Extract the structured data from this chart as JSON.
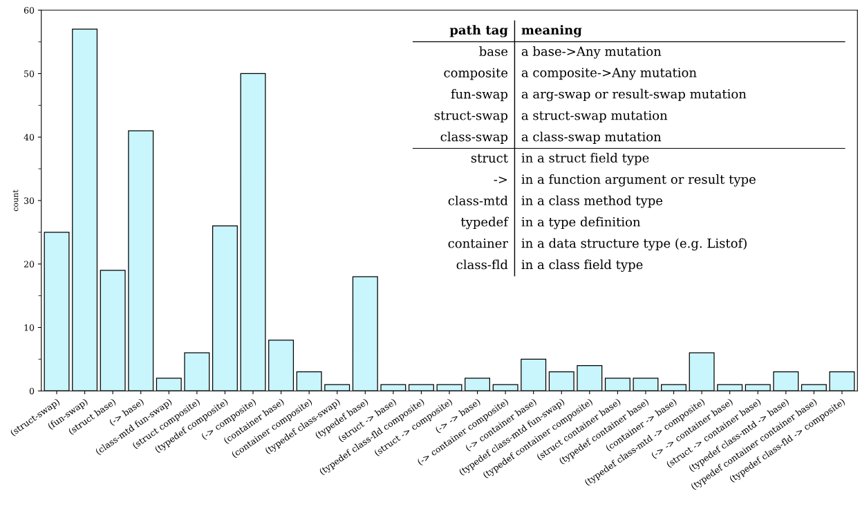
{
  "chart_data": {
    "type": "bar",
    "ylabel": "count",
    "categories": [
      "(struct-swap)",
      "(fun-swap)",
      "(struct base)",
      "(-> base)",
      "(class-mtd fun-swap)",
      "(struct composite)",
      "(typedef composite)",
      "(-> composite)",
      "(container base)",
      "(container composite)",
      "(typedef class-swap)",
      "(typedef base)",
      "(struct -> base)",
      "(typedef class-fld composite)",
      "(struct -> composite)",
      "(-> -> base)",
      "(-> container composite)",
      "(-> container base)",
      "(typedef class-mtd fun-swap)",
      "(typedef container composite)",
      "(struct container base)",
      "(typedef container base)",
      "(container -> base)",
      "(typedef class-mtd -> composite)",
      "(-> -> container base)",
      "(struct -> container base)",
      "(typedef class-mtd -> base)",
      "(typedef container container base)",
      "(typedef class-fld -> composite)"
    ],
    "values": [
      25,
      57,
      19,
      41,
      2,
      6,
      26,
      50,
      8,
      3,
      1,
      18,
      1,
      1,
      1,
      2,
      1,
      5,
      3,
      4,
      2,
      2,
      1,
      6,
      1,
      1,
      3,
      1,
      3
    ],
    "color": "#c9f5fc",
    "ylim": [
      0,
      60
    ],
    "yticks": [
      0,
      10,
      20,
      30,
      40,
      50,
      60
    ],
    "grid": false,
    "legend": false,
    "annotations": [
      "path tag",
      "meaning",
      "base",
      "a base->Any mutation",
      "composite",
      "a composite->Any mutation",
      "fun-swap",
      "a arg-swap or result-swap mutation",
      "struct-swap",
      "a struct-swap mutation",
      "class-swap",
      "a class-swap mutation",
      "struct",
      "in a struct field type",
      "->",
      "in a function argument or result type",
      "class-mtd",
      "in a class method type",
      "typedef",
      "in a type definition",
      "container",
      "in a data structure type (e.g. Listof)",
      "class-fld",
      "in a class field type"
    ]
  }
}
